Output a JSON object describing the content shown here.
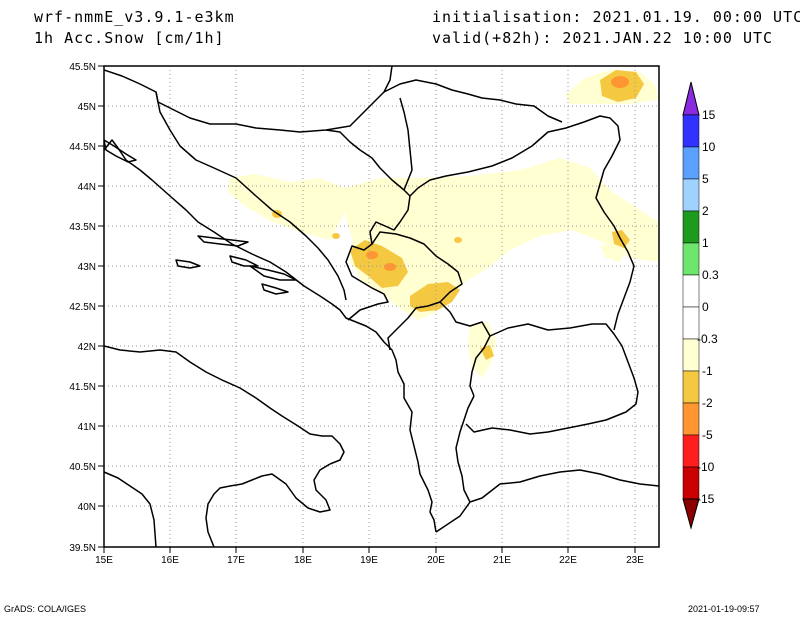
{
  "header": {
    "model": "wrf-nmmE_v3.9.1-e3km",
    "field": "1h Acc.Snow [cm/1h]",
    "init": "initialisation: 2021.01.19.  00:00 UTC",
    "valid": "valid(+82h): 2021.JAN.22 10:00 UTC"
  },
  "axes": {
    "lon_labels": [
      "15E",
      "16E",
      "17E",
      "18E",
      "19E",
      "20E",
      "21E",
      "22E",
      "23E"
    ],
    "lat_labels": [
      "45.5N",
      "45N",
      "44.5N",
      "44N",
      "43.5N",
      "43N",
      "42.5N",
      "42N",
      "41.5N",
      "41N",
      "40.5N",
      "40N",
      "39.5N"
    ]
  },
  "colorbar": {
    "labels": [
      "15",
      "10",
      "5",
      "2",
      "1",
      "0.3",
      "0",
      "-0.3",
      "-1",
      "-2",
      "-5",
      "-10",
      "-15"
    ],
    "colors": [
      "#8a2be2",
      "#3232ff",
      "#5aa0ff",
      "#a0d2ff",
      "#1e9b1e",
      "#6ee66e",
      "#ffffff",
      "#ffffd2",
      "#f5c842",
      "#ff9632",
      "#ff1e1e",
      "#c80000",
      "#8b0000"
    ]
  },
  "footer": {
    "left": "GrADS: COLA/IGES",
    "right": "2021-01-19-09:57"
  }
}
